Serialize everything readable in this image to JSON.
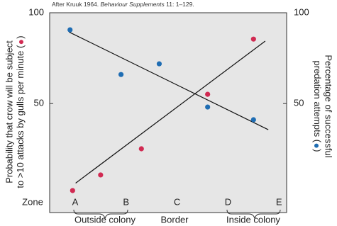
{
  "chart_data": {
    "type": "scatter",
    "source": [
      "After Kruuk 1964. ",
      "Behaviour Supplements",
      " 11: 1–129."
    ],
    "y_label": [
      "Probability that crow will be subject",
      "to >10 attacks by gulls per minute (",
      ")"
    ],
    "y2_label": [
      "Percentage of successful",
      "predation attempts (",
      ")"
    ],
    "x_label": "Zone",
    "zone_groups": [
      "Outside colony",
      "Border",
      "Inside colony"
    ],
    "xlim": [
      -0.5,
      4.15
    ],
    "xticks": [
      {
        "value": 0,
        "label": "A"
      },
      {
        "value": 1,
        "label": "B"
      },
      {
        "value": 2,
        "label": "C"
      },
      {
        "value": 3,
        "label": "D"
      },
      {
        "value": 4,
        "label": "E"
      }
    ],
    "ylim": [
      -10,
      100
    ],
    "yticks": [
      50,
      100
    ],
    "y2lim": [
      -10,
      100
    ],
    "y2ticks": [
      50,
      100
    ],
    "series": [
      {
        "color": "#d12a52",
        "axis": "y",
        "x": [
          -0.05,
          0.5,
          1.3,
          2.6,
          3.5
        ],
        "values": [
          2.1,
          10.7,
          25.1,
          55.1,
          85.5
        ],
        "trend": {
          "x": [
            0.01,
            3.73
          ],
          "values": [
            6.2,
            84.4
          ]
        }
      },
      {
        "color": "#1f6db3",
        "axis": "y2",
        "x": [
          -0.1,
          0.9,
          1.65,
          2.6,
          3.5
        ],
        "values": [
          90.6,
          66,
          71.9,
          48.1,
          41.1
        ],
        "trend": {
          "x": [
            -0.12,
            3.79
          ],
          "values": [
            89.4,
            35.6
          ]
        }
      }
    ]
  }
}
